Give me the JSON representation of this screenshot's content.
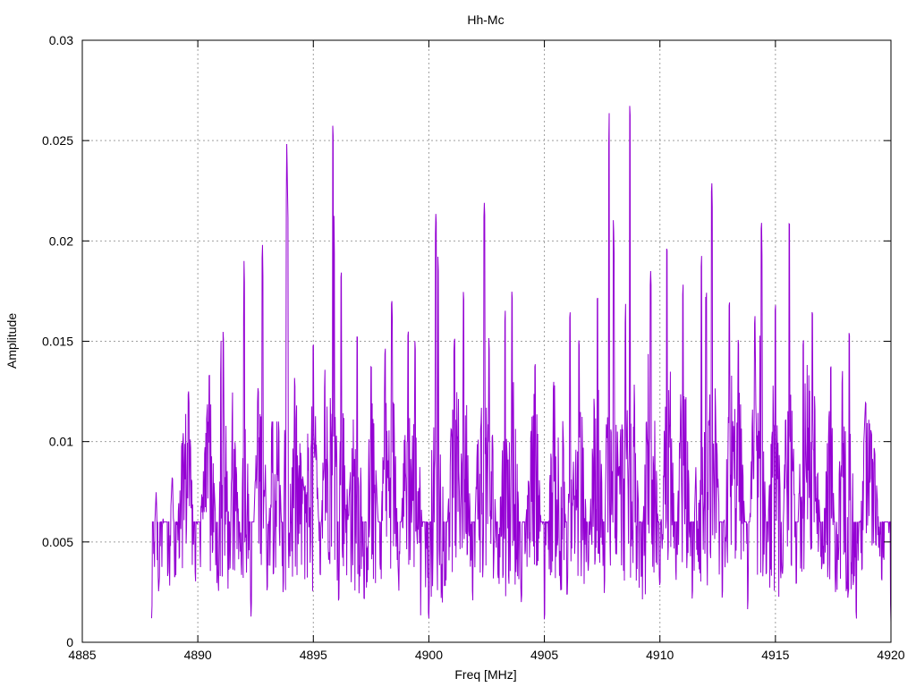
{
  "chart_data": {
    "type": "line",
    "title": "Hh-Mc",
    "xlabel": "Freq [MHz]",
    "ylabel": "Amplitude",
    "xlim": [
      4885,
      4920
    ],
    "ylim": [
      0,
      0.03
    ],
    "x_ticks": [
      4885,
      4890,
      4895,
      4900,
      4905,
      4910,
      4915,
      4920
    ],
    "x_tick_labels": [
      "4885",
      "4890",
      "4895",
      "4900",
      "4905",
      "4910",
      "4915",
      "4920"
    ],
    "y_ticks": [
      0,
      0.005,
      0.01,
      0.015,
      0.02,
      0.025,
      0.03
    ],
    "y_tick_labels": [
      "0",
      "0.005",
      "0.01",
      "0.015",
      "0.02",
      "0.025",
      "0.03"
    ],
    "grid": true,
    "series": [
      {
        "color": "#9400d3",
        "x_start": 4888.0,
        "x_end": 4920.0,
        "envelope": [
          [
            4888.0,
            0.0012
          ],
          [
            4888.1,
            0.0048
          ],
          [
            4888.2,
            0.0076
          ],
          [
            4888.3,
            0.0025
          ],
          [
            4888.5,
            0.0062
          ],
          [
            4888.7,
            0.0032
          ],
          [
            4888.9,
            0.0085
          ],
          [
            4889.0,
            0.003
          ],
          [
            4889.3,
            0.0098
          ],
          [
            4889.6,
            0.0125
          ],
          [
            4889.9,
            0.003
          ],
          [
            4890.3,
            0.0095
          ],
          [
            4890.5,
            0.0135
          ],
          [
            4890.9,
            0.0025
          ],
          [
            4891.0,
            0.015
          ],
          [
            4891.1,
            0.0155
          ],
          [
            4891.4,
            0.0035
          ],
          [
            4891.5,
            0.0125
          ],
          [
            4891.9,
            0.0032
          ],
          [
            4892.0,
            0.019
          ],
          [
            4892.3,
            0.0012
          ],
          [
            4892.6,
            0.0125
          ],
          [
            4892.8,
            0.0198
          ],
          [
            4893.0,
            0.0022
          ],
          [
            4893.2,
            0.011
          ],
          [
            4893.5,
            0.011
          ],
          [
            4893.7,
            0.002
          ],
          [
            4893.85,
            0.025
          ],
          [
            4893.9,
            0.0212
          ],
          [
            4894.2,
            0.0128
          ],
          [
            4894.6,
            0.0075
          ],
          [
            4895.0,
            0.015
          ],
          [
            4895.3,
            0.003
          ],
          [
            4895.5,
            0.0135
          ],
          [
            4895.85,
            0.0261
          ],
          [
            4895.9,
            0.0205
          ],
          [
            4896.1,
            0.001
          ],
          [
            4896.2,
            0.019
          ],
          [
            4896.5,
            0.006
          ],
          [
            4896.9,
            0.0155
          ],
          [
            4897.2,
            0.0018
          ],
          [
            4897.5,
            0.014
          ],
          [
            4897.9,
            0.0035
          ],
          [
            4898.1,
            0.0145
          ],
          [
            4898.4,
            0.017
          ],
          [
            4898.7,
            0.0025
          ],
          [
            4899.1,
            0.0155
          ],
          [
            4899.4,
            0.015
          ],
          [
            4899.7,
            0.006
          ],
          [
            4900.0,
            0.0012
          ],
          [
            4900.3,
            0.0214
          ],
          [
            4900.4,
            0.019
          ],
          [
            4900.7,
            0.0025
          ],
          [
            4901.1,
            0.015
          ],
          [
            4901.5,
            0.0175
          ],
          [
            4901.9,
            0.002
          ],
          [
            4902.4,
            0.0219
          ],
          [
            4902.6,
            0.015
          ],
          [
            4903.0,
            0.003
          ],
          [
            4903.3,
            0.0165
          ],
          [
            4903.6,
            0.0175
          ],
          [
            4904.0,
            0.002
          ],
          [
            4904.6,
            0.014
          ],
          [
            4905.0,
            0.001
          ],
          [
            4905.4,
            0.013
          ],
          [
            4905.8,
            0.011
          ],
          [
            4906.0,
            0.002
          ],
          [
            4906.1,
            0.0165
          ],
          [
            4906.5,
            0.015
          ],
          [
            4906.9,
            0.0035
          ],
          [
            4907.3,
            0.0175
          ],
          [
            4907.6,
            0.002
          ],
          [
            4907.8,
            0.0265
          ],
          [
            4908.0,
            0.0205
          ],
          [
            4908.2,
            0.008
          ],
          [
            4908.5,
            0.016
          ],
          [
            4908.7,
            0.0271
          ],
          [
            4908.9,
            0.012
          ],
          [
            4909.2,
            0.003
          ],
          [
            4909.6,
            0.0185
          ],
          [
            4910.0,
            0.0025
          ],
          [
            4910.3,
            0.02
          ],
          [
            4910.7,
            0.003
          ],
          [
            4911.0,
            0.018
          ],
          [
            4911.4,
            0.002
          ],
          [
            4911.8,
            0.0193
          ],
          [
            4912.0,
            0.017
          ],
          [
            4912.25,
            0.0229
          ],
          [
            4912.4,
            0.012
          ],
          [
            4912.7,
            0.002
          ],
          [
            4913.0,
            0.017
          ],
          [
            4913.4,
            0.015
          ],
          [
            4913.8,
            0.0015
          ],
          [
            4914.1,
            0.016
          ],
          [
            4914.4,
            0.0209
          ],
          [
            4914.6,
            0.003
          ],
          [
            4915.0,
            0.017
          ],
          [
            4915.3,
            0.003
          ],
          [
            4915.6,
            0.0214
          ],
          [
            4915.9,
            0.0025
          ],
          [
            4916.2,
            0.015
          ],
          [
            4916.6,
            0.0165
          ],
          [
            4917.0,
            0.0035
          ],
          [
            4917.4,
            0.014
          ],
          [
            4917.6,
            0.0025
          ],
          [
            4917.9,
            0.0135
          ],
          [
            4918.2,
            0.0155
          ],
          [
            4918.5,
            0.001
          ],
          [
            4918.9,
            0.012
          ],
          [
            4919.3,
            0.0095
          ],
          [
            4919.6,
            0.003
          ],
          [
            4919.9,
            0.006
          ],
          [
            4920.0,
            0.001
          ]
        ]
      }
    ]
  }
}
